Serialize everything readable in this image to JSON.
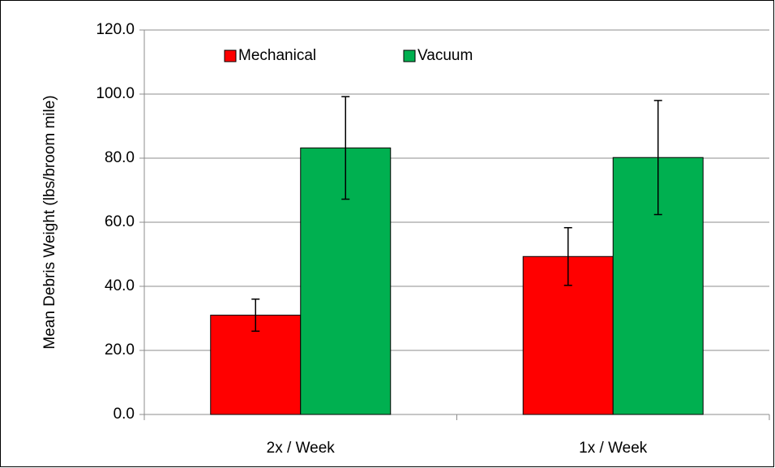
{
  "chart_data": {
    "type": "bar",
    "y_label": "Mean Debris Weight (lbs/broom mile)",
    "categories": [
      "2x / Week",
      "1x / Week"
    ],
    "series": [
      {
        "name": "Mechanical",
        "color": "#ff0000",
        "values": [
          31.0,
          49.3
        ],
        "errors": [
          5.0,
          9.0
        ]
      },
      {
        "name": "Vacuum",
        "color": "#00b050",
        "values": [
          83.2,
          80.2
        ],
        "errors": [
          16.0,
          17.8
        ]
      }
    ],
    "ylim": [
      0,
      120
    ],
    "yticks": [
      {
        "value": 0,
        "label": "0.0"
      },
      {
        "value": 20,
        "label": "20.0"
      },
      {
        "value": 40,
        "label": "40.0"
      },
      {
        "value": 60,
        "label": "60.0"
      },
      {
        "value": 80,
        "label": "80.0"
      },
      {
        "value": 100,
        "label": "100.0"
      },
      {
        "value": 120,
        "label": "120.0"
      }
    ],
    "grid": true,
    "legend": "top"
  }
}
